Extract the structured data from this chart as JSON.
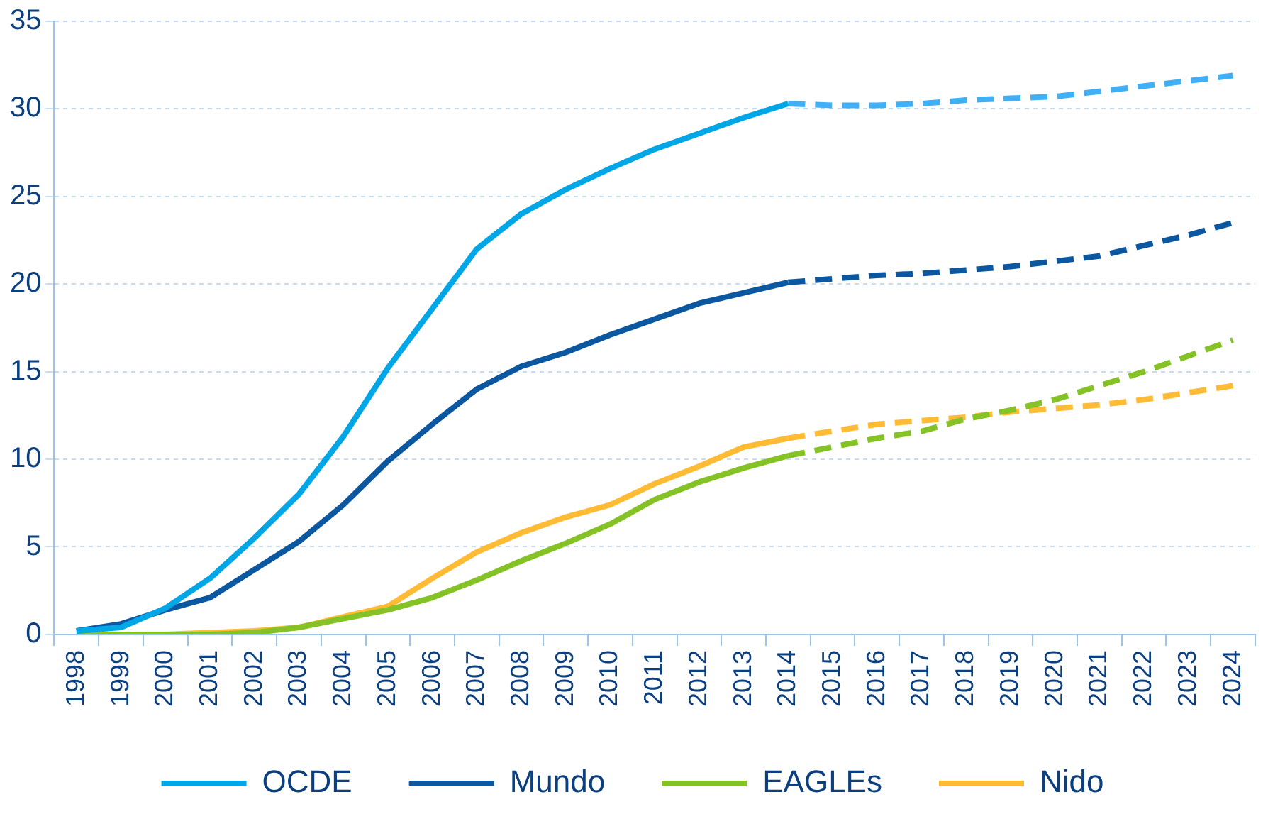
{
  "chart_data": {
    "type": "line",
    "categories": [
      "1998",
      "1999",
      "2000",
      "2001",
      "2002",
      "2003",
      "2004",
      "2005",
      "2006",
      "2007",
      "2008",
      "2009",
      "2010",
      "2011",
      "2012",
      "2013",
      "2014",
      "2015",
      "2016",
      "2017",
      "2018",
      "2019",
      "2020",
      "2021",
      "2022",
      "2023",
      "2024"
    ],
    "series": [
      {
        "name": "OCDE",
        "color": "#00a6e6",
        "line_style": "solid",
        "values": [
          0.2,
          0.4,
          1.5,
          3.2,
          5.5,
          8.0,
          11.3,
          15.2,
          18.6,
          22.0,
          24.0,
          25.4,
          26.6,
          27.7,
          28.6,
          29.5,
          30.3,
          null,
          null,
          null,
          null,
          null,
          null,
          null,
          null,
          null,
          null
        ]
      },
      {
        "name": "Mundo",
        "color": "#0b57a0",
        "line_style": "solid",
        "values": [
          0.2,
          0.6,
          1.4,
          2.1,
          3.7,
          5.3,
          7.4,
          9.9,
          12.0,
          14.0,
          15.3,
          16.1,
          17.1,
          18.0,
          18.9,
          19.5,
          20.1,
          null,
          null,
          null,
          null,
          null,
          null,
          null,
          null,
          null,
          null
        ]
      },
      {
        "name": "EAGLEs",
        "color": "#84c225",
        "line_style": "solid",
        "values": [
          0,
          0,
          0,
          0,
          0.1,
          0.4,
          0.9,
          1.4,
          2.1,
          3.1,
          4.2,
          5.2,
          6.3,
          7.7,
          8.7,
          9.5,
          10.2,
          null,
          null,
          null,
          null,
          null,
          null,
          null,
          null,
          null,
          null
        ]
      },
      {
        "name": "Nido",
        "color": "#ffbb33",
        "line_style": "solid",
        "values": [
          0,
          0,
          0,
          0.1,
          0.2,
          0.4,
          1.0,
          1.6,
          3.2,
          4.7,
          5.8,
          6.7,
          7.4,
          8.6,
          9.6,
          10.7,
          11.2,
          null,
          null,
          null,
          null,
          null,
          null,
          null,
          null,
          null,
          null
        ]
      },
      {
        "color": "#3fb0f5",
        "line_style": "dashed",
        "values": [
          null,
          null,
          null,
          null,
          null,
          null,
          null,
          null,
          null,
          null,
          null,
          null,
          null,
          null,
          null,
          null,
          30.3,
          30.2,
          30.2,
          30.3,
          30.5,
          30.6,
          30.7,
          31.0,
          31.3,
          31.6,
          31.9
        ]
      },
      {
        "color": "#0b57a0",
        "line_style": "dashed",
        "values": [
          null,
          null,
          null,
          null,
          null,
          null,
          null,
          null,
          null,
          null,
          null,
          null,
          null,
          null,
          null,
          null,
          20.1,
          20.3,
          20.5,
          20.6,
          20.8,
          21.0,
          21.3,
          21.6,
          22.2,
          22.8,
          23.5
        ]
      },
      {
        "color": "#84c225",
        "line_style": "dashed",
        "values": [
          null,
          null,
          null,
          null,
          null,
          null,
          null,
          null,
          null,
          null,
          null,
          null,
          null,
          null,
          null,
          null,
          10.2,
          10.7,
          11.2,
          11.6,
          12.3,
          12.8,
          13.4,
          14.2,
          15.0,
          15.9,
          16.8
        ]
      },
      {
        "color": "#ffbb33",
        "line_style": "dashed",
        "values": [
          null,
          null,
          null,
          null,
          null,
          null,
          null,
          null,
          null,
          null,
          null,
          null,
          null,
          null,
          null,
          null,
          11.2,
          11.6,
          12.0,
          12.2,
          12.4,
          12.7,
          12.9,
          13.1,
          13.4,
          13.8,
          14.2
        ]
      }
    ],
    "ylim": [
      0,
      35
    ],
    "yticks": [
      0,
      5,
      10,
      15,
      20,
      25,
      30,
      35
    ],
    "grid": "y",
    "legend": "bottom",
    "marker": "none"
  }
}
